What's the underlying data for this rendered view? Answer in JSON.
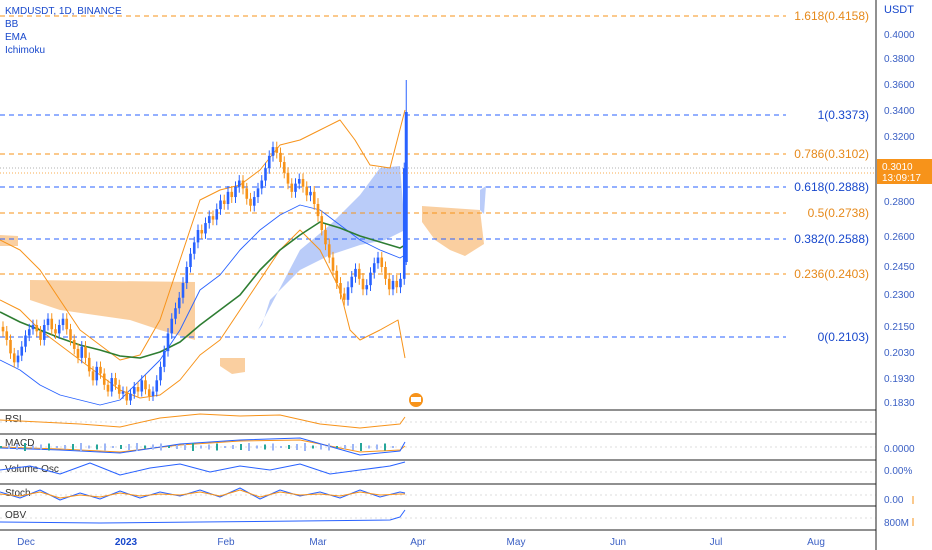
{
  "header": {
    "symbol": "KMDUSDT, 1D, BINANCE",
    "indicators": [
      "BB",
      "EMA",
      "Ichimoku"
    ]
  },
  "price_axis": {
    "currency": "USDT",
    "current_price": "0.3010",
    "countdown": "13:09:17"
  },
  "panes": [
    "RSI",
    "MACD",
    "Volume Osc",
    "Stoch",
    "OBV"
  ],
  "pane_axis_labels": [
    "0.0000",
    "0.00%",
    "0.00",
    "800M"
  ],
  "colors": {
    "up": "#2962ff",
    "down": "#f7931a",
    "fib_blue": "#2962ff",
    "fib_orange": "#f7931a",
    "ema": "#2e7d32",
    "bb": "#f7931a",
    "cloud_orange": "#f9c78f",
    "cloud_blue": "#9db6f6",
    "text_blue": "#1848cc",
    "text_orange": "#e6891a"
  },
  "chart_data": {
    "type": "candlestick",
    "title": "KMDUSDT, 1D, BINANCE",
    "x_ticks": [
      "Dec",
      "2023",
      "Feb",
      "Mar",
      "Apr",
      "May",
      "Jun",
      "Jul",
      "Aug"
    ],
    "y_ticks": [
      "0.4000",
      "0.3800",
      "0.3600",
      "0.3400",
      "0.3200",
      "0.2800",
      "0.2600",
      "0.2450",
      "0.2300",
      "0.2150",
      "0.2030",
      "0.1930",
      "0.1830"
    ],
    "fib_levels": [
      {
        "label": "1.618(0.4158)",
        "value": 0.4158,
        "color": "orange"
      },
      {
        "label": "1(0.3373)",
        "value": 0.3373,
        "color": "blue"
      },
      {
        "label": "0.786(0.3102)",
        "value": 0.3102,
        "color": "orange"
      },
      {
        "label": "0.618(0.2888)",
        "value": 0.2888,
        "color": "blue"
      },
      {
        "label": "0.5(0.2738)",
        "value": 0.2738,
        "color": "orange"
      },
      {
        "label": "0.382(0.2588)",
        "value": 0.2588,
        "color": "blue"
      },
      {
        "label": "0.236(0.2403)",
        "value": 0.2403,
        "color": "orange"
      },
      {
        "label": "0(0.2103)",
        "value": 0.2103,
        "color": "blue"
      }
    ],
    "close_series": [
      0.213,
      0.209,
      0.203,
      0.199,
      0.202,
      0.206,
      0.211,
      0.214,
      0.216,
      0.213,
      0.209,
      0.216,
      0.219,
      0.214,
      0.212,
      0.216,
      0.219,
      0.214,
      0.209,
      0.205,
      0.201,
      0.206,
      0.201,
      0.195,
      0.191,
      0.197,
      0.194,
      0.189,
      0.186,
      0.192,
      0.189,
      0.185,
      0.186,
      0.182,
      0.185,
      0.188,
      0.186,
      0.191,
      0.187,
      0.184,
      0.186,
      0.191,
      0.197,
      0.204,
      0.212,
      0.219,
      0.224,
      0.229,
      0.236,
      0.244,
      0.251,
      0.257,
      0.264,
      0.262,
      0.268,
      0.272,
      0.27,
      0.276,
      0.281,
      0.279,
      0.286,
      0.283,
      0.289,
      0.293,
      0.288,
      0.282,
      0.278,
      0.283,
      0.288,
      0.293,
      0.301,
      0.309,
      0.315,
      0.311,
      0.305,
      0.298,
      0.291,
      0.286,
      0.291,
      0.294,
      0.289,
      0.284,
      0.286,
      0.279,
      0.272,
      0.264,
      0.256,
      0.249,
      0.242,
      0.236,
      0.231,
      0.228,
      0.234,
      0.239,
      0.243,
      0.238,
      0.233,
      0.235,
      0.241,
      0.246,
      0.249,
      0.244,
      0.238,
      0.233,
      0.237,
      0.234,
      0.238,
      0.301
    ]
  }
}
